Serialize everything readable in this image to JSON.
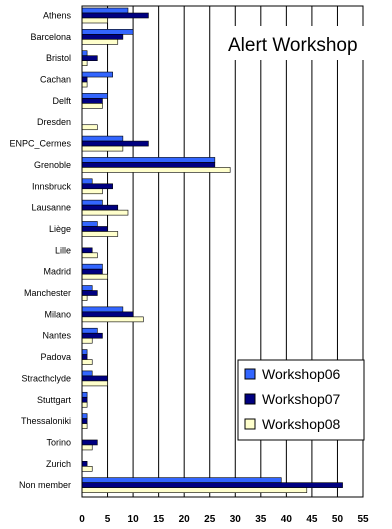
{
  "chart_data": {
    "type": "bar",
    "orientation": "horizontal",
    "title": "Alert Workshop",
    "categories": [
      "Athens",
      "Barcelona",
      "Bristol",
      "Cachan",
      "Delft",
      "Dresden",
      "ENPC_Cermes",
      "Grenoble",
      "Innsbruck",
      "Lausanne",
      "Liège",
      "Lille",
      "Madrid",
      "Manchester",
      "Milano",
      "Nantes",
      "Padova",
      "Stracthclyde",
      "Stuttgart",
      "Thessaloniki",
      "Torino",
      "Zurich",
      "Non member"
    ],
    "series": [
      {
        "name": "Workshop06",
        "color": "#3366ff",
        "values": [
          9,
          10,
          1,
          6,
          5,
          0,
          8,
          26,
          2,
          4,
          3,
          0,
          4,
          2,
          8,
          3,
          1,
          2,
          1,
          1,
          0,
          0,
          39
        ]
      },
      {
        "name": "Workshop07",
        "color": "#000080",
        "values": [
          13,
          8,
          3,
          1,
          4,
          0,
          13,
          26,
          6,
          7,
          5,
          2,
          4,
          3,
          10,
          4,
          1,
          5,
          1,
          1,
          3,
          1,
          51
        ]
      },
      {
        "name": "Workshop08",
        "color": "#ffffcc",
        "values": [
          5,
          7,
          1,
          1,
          4,
          3,
          8,
          29,
          4,
          9,
          7,
          3,
          5,
          1,
          12,
          2,
          2,
          5,
          1,
          1,
          2,
          2,
          44
        ]
      }
    ],
    "xlim": [
      0,
      55
    ],
    "xticks": [
      0,
      5,
      10,
      15,
      20,
      25,
      30,
      35,
      40,
      45,
      50,
      55
    ],
    "grid": "vertical",
    "legend_position": "bottom-right"
  }
}
